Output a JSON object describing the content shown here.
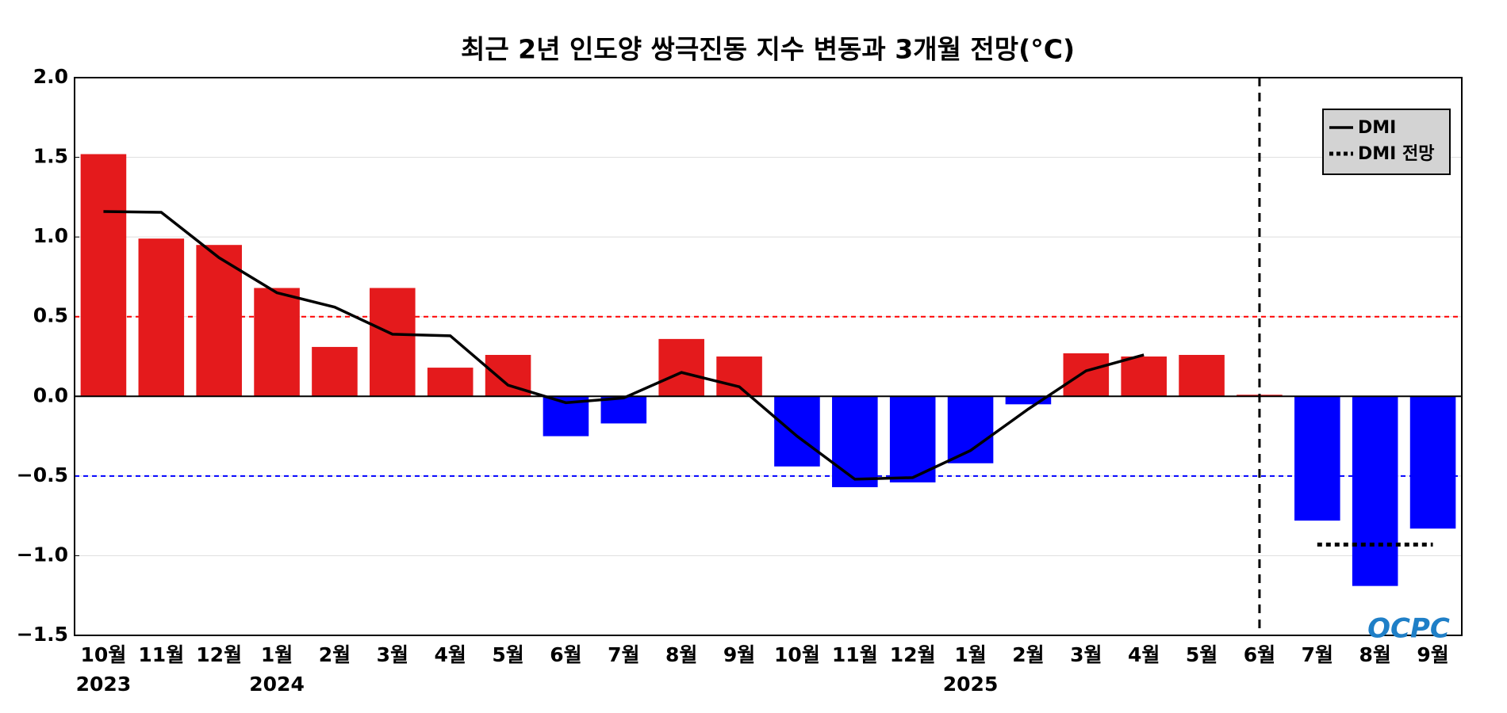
{
  "chart_data": {
    "type": "bar",
    "title": "최근 2년 인도양 쌍극진동 지수 변동과 3개월 전망(°C)",
    "categories": [
      "10월",
      "11월",
      "12월",
      "1월",
      "2월",
      "3월",
      "4월",
      "5월",
      "6월",
      "7월",
      "8월",
      "9월",
      "10월",
      "11월",
      "12월",
      "1월",
      "2월",
      "3월",
      "4월",
      "5월",
      "6월",
      "7월",
      "8월",
      "9월"
    ],
    "year_labels": [
      "2023",
      null,
      null,
      "2024",
      null,
      null,
      null,
      null,
      null,
      null,
      null,
      null,
      null,
      null,
      null,
      "2025",
      null,
      null,
      null,
      null,
      null,
      null,
      null,
      null
    ],
    "values": [
      1.52,
      0.99,
      0.95,
      0.68,
      0.31,
      0.68,
      0.18,
      0.26,
      -0.25,
      -0.17,
      0.36,
      0.25,
      -0.44,
      -0.57,
      -0.54,
      -0.42,
      -0.05,
      0.27,
      0.25,
      0.26,
      0.01,
      -0.78,
      -1.19,
      -0.83
    ],
    "colors": [
      "#e41a1c",
      "#e41a1c",
      "#e41a1c",
      "#e41a1c",
      "#e41a1c",
      "#e41a1c",
      "#e41a1c",
      "#e41a1c",
      "#0000ff",
      "#0000ff",
      "#e41a1c",
      "#e41a1c",
      "#0000ff",
      "#0000ff",
      "#0000ff",
      "#0000ff",
      "#0000ff",
      "#e41a1c",
      "#e41a1c",
      "#e41a1c",
      "#e41a1c",
      "#0000ff",
      "#0000ff",
      "#0000ff"
    ],
    "series": [
      {
        "name": "DMI",
        "color": "#000000",
        "style": "solid",
        "values": [
          1.16,
          1.155,
          0.87,
          0.65,
          0.56,
          0.39,
          0.38,
          0.07,
          -0.04,
          -0.01,
          0.15,
          0.06,
          -0.25,
          -0.52,
          -0.51,
          -0.34,
          -0.08,
          0.16,
          0.26,
          null,
          null,
          null,
          null,
          null
        ]
      },
      {
        "name": "DMI 전망",
        "color": "#000000",
        "style": "dotted",
        "values": [
          null,
          null,
          null,
          null,
          null,
          null,
          null,
          null,
          null,
          null,
          null,
          null,
          null,
          null,
          null,
          null,
          null,
          null,
          null,
          null,
          null,
          -0.93,
          -0.93,
          -0.93
        ]
      }
    ],
    "hlines": [
      {
        "value": 0.5,
        "color": "#ff0000"
      },
      {
        "value": -0.5,
        "color": "#0000ff"
      }
    ],
    "vline_index": 20,
    "ylim": [
      -1.5,
      2.0
    ],
    "yticks": [
      {
        "value": -1.5,
        "label": "−1.5"
      },
      {
        "value": -1.0,
        "label": "−1.0"
      },
      {
        "value": -0.5,
        "label": "−0.5"
      },
      {
        "value": 0,
        "label": "0.0"
      },
      {
        "value": 0.5,
        "label": "0.5"
      },
      {
        "value": 1.0,
        "label": "1.0"
      },
      {
        "value": 1.5,
        "label": "1.5"
      },
      {
        "value": 2.0,
        "label": "2.0"
      }
    ],
    "grid": true,
    "legend": "upper right",
    "logo": "OCPC"
  }
}
